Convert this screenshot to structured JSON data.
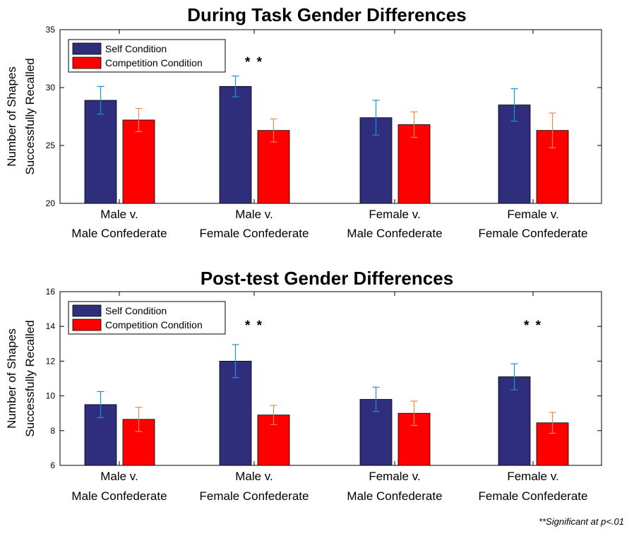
{
  "colors": {
    "self_fill": "#2e2e7d",
    "self_err": "#1f8fd8",
    "comp_fill": "#ff0000",
    "comp_err": "#f0884e"
  },
  "footnote": "**Significant at p<.01",
  "chart_data": [
    {
      "type": "bar",
      "title": "During Task Gender Differences",
      "ylabel": [
        "Number of Shapes",
        "Successfully Recalled"
      ],
      "xlabel": "",
      "ylim": [
        20,
        35
      ],
      "yticks": [
        "20",
        "25",
        "30",
        "35"
      ],
      "categories": [
        [
          "Male v.",
          "Male Confederate"
        ],
        [
          "Male v.",
          "Female Confederate"
        ],
        [
          "Female v.",
          "Male Confederate"
        ],
        [
          "Female v.",
          "Female Confederate"
        ]
      ],
      "series": [
        {
          "name": "Self Condition",
          "values": [
            28.9,
            30.1,
            27.4,
            28.5
          ],
          "errors": [
            1.2,
            0.9,
            1.5,
            1.4
          ]
        },
        {
          "name": "Competition Condition",
          "values": [
            27.2,
            26.3,
            26.8,
            26.3
          ],
          "errors": [
            1.0,
            1.0,
            1.1,
            1.5
          ]
        }
      ],
      "significance": [
        "",
        "* *",
        "",
        ""
      ],
      "legend": "top-left"
    },
    {
      "type": "bar",
      "title": "Post-test Gender Differences",
      "ylabel": [
        "Number of Shapes",
        "Successfully Recalled"
      ],
      "xlabel": "",
      "ylim": [
        6,
        16
      ],
      "yticks": [
        "6",
        "8",
        "10",
        "12",
        "14",
        "16"
      ],
      "categories": [
        [
          "Male v.",
          "Male Confederate"
        ],
        [
          "Male v.",
          "Female Confederate"
        ],
        [
          "Female v.",
          "Male Confederate"
        ],
        [
          "Female v.",
          "Female Confederate"
        ]
      ],
      "series": [
        {
          "name": "Self Condition",
          "values": [
            9.5,
            12.0,
            9.8,
            11.1
          ],
          "errors": [
            0.75,
            0.95,
            0.7,
            0.75
          ]
        },
        {
          "name": "Competition Condition",
          "values": [
            8.65,
            8.9,
            9.0,
            8.45
          ],
          "errors": [
            0.7,
            0.55,
            0.7,
            0.6
          ]
        }
      ],
      "significance": [
        "",
        "* *",
        "",
        "* *"
      ],
      "legend": "top-left"
    }
  ]
}
